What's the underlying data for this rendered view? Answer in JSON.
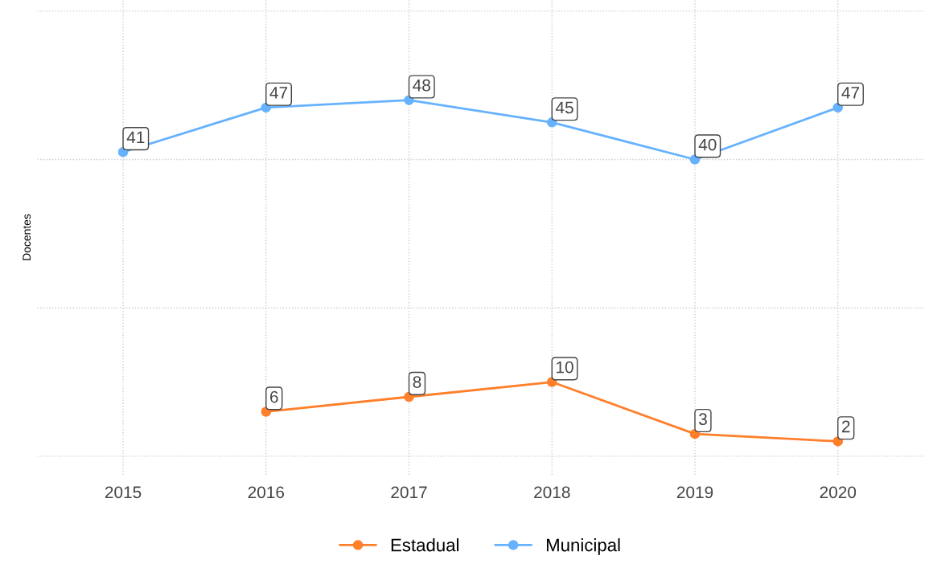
{
  "chart_data": {
    "type": "line",
    "ylabel": "Docentes",
    "categories": [
      "2015",
      "2016",
      "2017",
      "2018",
      "2019",
      "2020"
    ],
    "series": [
      {
        "name": "Estadual",
        "color": "#ff7f2a",
        "values": [
          null,
          6,
          8,
          10,
          3,
          2
        ]
      },
      {
        "name": "Municipal",
        "color": "#66b2ff",
        "values": [
          41,
          47,
          48,
          45,
          40,
          47
        ]
      }
    ],
    "ylim": [
      -2.5,
      61.5
    ],
    "yticks": [
      {
        "value": 0,
        "label": null
      },
      {
        "value": 20,
        "label": null
      },
      {
        "value": 40,
        "label": null
      },
      {
        "value": 60,
        "label": null
      }
    ],
    "tick_labels": "x",
    "grid": true,
    "legend": "bottom",
    "marker": "circle",
    "line_style": "solid",
    "data_labels": true
  }
}
